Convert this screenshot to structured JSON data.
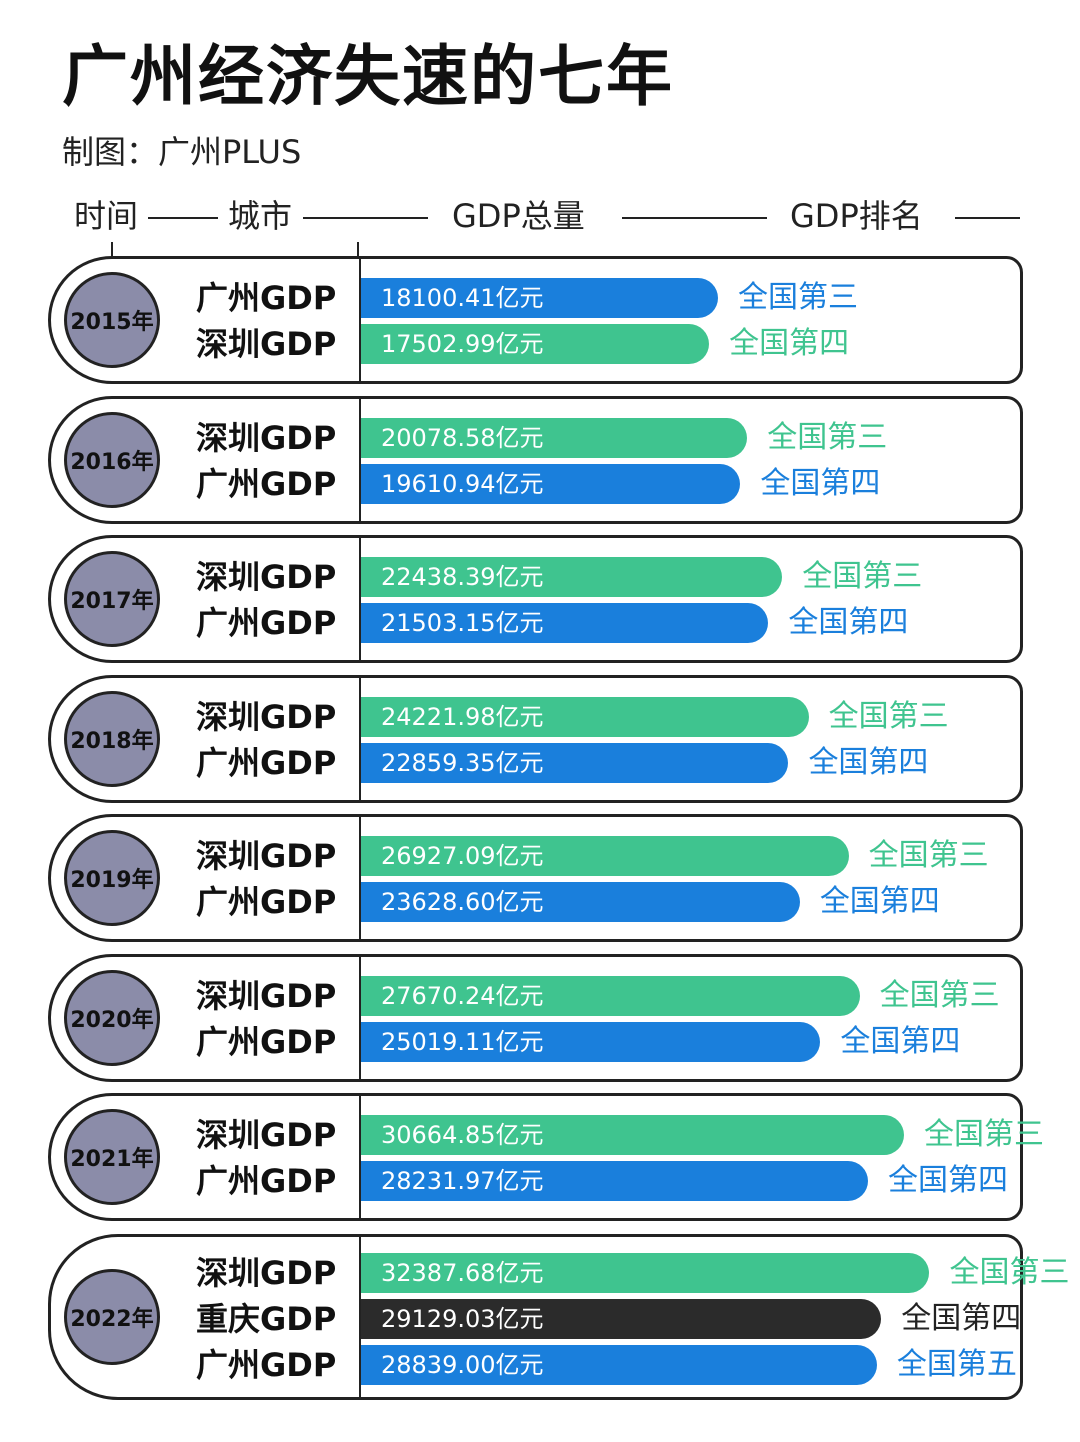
{
  "title": "广州经济失速的七年",
  "subtitle": "制图：广州PLUS",
  "headers": {
    "time": "时间",
    "city": "城市",
    "gdp_total": "GDP总量",
    "gdp_rank": "GDP排名"
  },
  "colors": {
    "guangzhou": "#1a7fdc",
    "shenzhen": "#3fc48f",
    "chongqing": "#2b2b2b",
    "circle": "#8b8ca9"
  },
  "chart_data": {
    "type": "bar",
    "unit": "亿元",
    "years": [
      {
        "year_label": "2015年",
        "rows": [
          {
            "city": "广州GDP",
            "key": "guangzhou",
            "value": 18100.41,
            "value_label": "18100.41亿元",
            "rank": "全国第三"
          },
          {
            "city": "深圳GDP",
            "key": "shenzhen",
            "value": 17502.99,
            "value_label": "17502.99亿元",
            "rank": "全国第四"
          }
        ]
      },
      {
        "year_label": "2016年",
        "rows": [
          {
            "city": "深圳GDP",
            "key": "shenzhen",
            "value": 20078.58,
            "value_label": "20078.58亿元",
            "rank": "全国第三"
          },
          {
            "city": "广州GDP",
            "key": "guangzhou",
            "value": 19610.94,
            "value_label": "19610.94亿元",
            "rank": "全国第四"
          }
        ]
      },
      {
        "year_label": "2017年",
        "rows": [
          {
            "city": "深圳GDP",
            "key": "shenzhen",
            "value": 22438.39,
            "value_label": "22438.39亿元",
            "rank": "全国第三"
          },
          {
            "city": "广州GDP",
            "key": "guangzhou",
            "value": 21503.15,
            "value_label": "21503.15亿元",
            "rank": "全国第四"
          }
        ]
      },
      {
        "year_label": "2018年",
        "rows": [
          {
            "city": "深圳GDP",
            "key": "shenzhen",
            "value": 24221.98,
            "value_label": "24221.98亿元",
            "rank": "全国第三"
          },
          {
            "city": "广州GDP",
            "key": "guangzhou",
            "value": 22859.35,
            "value_label": "22859.35亿元",
            "rank": "全国第四"
          }
        ]
      },
      {
        "year_label": "2019年",
        "rows": [
          {
            "city": "深圳GDP",
            "key": "shenzhen",
            "value": 26927.09,
            "value_label": "26927.09亿元",
            "rank": "全国第三"
          },
          {
            "city": "广州GDP",
            "key": "guangzhou",
            "value": 23628.6,
            "value_label": "23628.60亿元",
            "rank": "全国第四"
          }
        ]
      },
      {
        "year_label": "2020年",
        "rows": [
          {
            "city": "深圳GDP",
            "key": "shenzhen",
            "value": 27670.24,
            "value_label": "27670.24亿元",
            "rank": "全国第三"
          },
          {
            "city": "广州GDP",
            "key": "guangzhou",
            "value": 25019.11,
            "value_label": "25019.11亿元",
            "rank": "全国第四"
          }
        ]
      },
      {
        "year_label": "2021年",
        "rows": [
          {
            "city": "深圳GDP",
            "key": "shenzhen",
            "value": 30664.85,
            "value_label": "30664.85亿元",
            "rank": "全国第三"
          },
          {
            "city": "广州GDP",
            "key": "guangzhou",
            "value": 28231.97,
            "value_label": "28231.97亿元",
            "rank": "全国第四"
          }
        ]
      },
      {
        "year_label": "2022年",
        "rows": [
          {
            "city": "深圳GDP",
            "key": "shenzhen",
            "value": 32387.68,
            "value_label": "32387.68亿元",
            "rank": "全国第三"
          },
          {
            "city": "重庆GDP",
            "key": "chongqing",
            "value": 29129.03,
            "value_label": "29129.03亿元",
            "rank": "全国第四"
          },
          {
            "city": "广州GDP",
            "key": "guangzhou",
            "value": 28839.0,
            "value_label": "28839.00亿元",
            "rank": "全国第五"
          }
        ]
      }
    ]
  }
}
